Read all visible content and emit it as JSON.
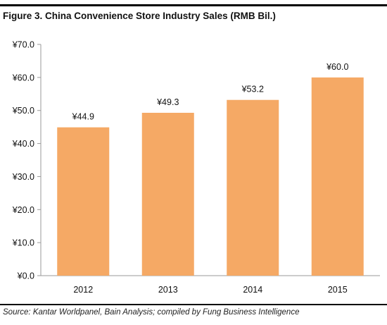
{
  "figure": {
    "title": "Figure 3. China Convenience Store Industry Sales (RMB Bil.)",
    "source": "Source: Kantar Worldpanel, Bain Analysis; compiled by Fung Business Intelligence"
  },
  "colors": {
    "bar": "#F5A965",
    "axis": "#9a9a9a",
    "text": "#111111"
  },
  "chart_data": {
    "type": "bar",
    "title": "Figure 3. China Convenience Store Industry Sales (RMB Bil.)",
    "xlabel": "",
    "ylabel": "",
    "categories": [
      "2012",
      "2013",
      "2014",
      "2015"
    ],
    "values": [
      44.9,
      49.3,
      53.2,
      60.0
    ],
    "data_labels": [
      "¥44.9",
      "¥49.3",
      "¥53.2",
      "¥60.0"
    ],
    "ylim": [
      0,
      70
    ],
    "yticks": [
      0,
      10,
      20,
      30,
      40,
      50,
      60,
      70
    ],
    "ytick_labels": [
      "¥0.0",
      "¥10.0",
      "¥20.0",
      "¥30.0",
      "¥40.0",
      "¥50.0",
      "¥60.0",
      "¥70.0"
    ],
    "grid": false,
    "legend": "none"
  }
}
